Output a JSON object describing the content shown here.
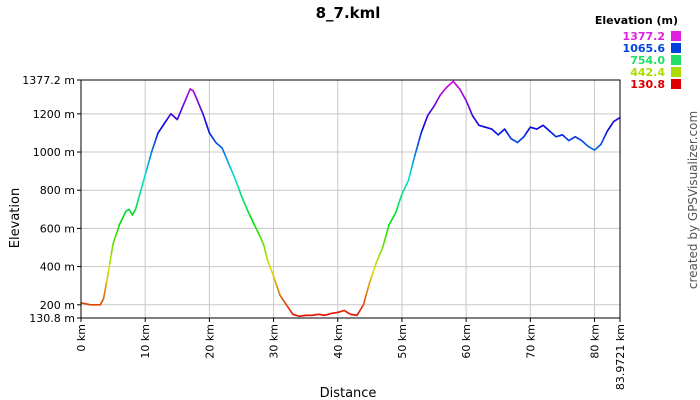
{
  "chart_data": {
    "type": "line",
    "title": "8_7.kml",
    "xlabel": "Distance",
    "ylabel": "Elevation",
    "xlim": [
      0,
      83.9721
    ],
    "ylim": [
      130.8,
      1377.2
    ],
    "x_ticks": [
      {
        "value": 0,
        "label": "0 km"
      },
      {
        "value": 10,
        "label": "10 km"
      },
      {
        "value": 20,
        "label": "20 km"
      },
      {
        "value": 30,
        "label": "30 km"
      },
      {
        "value": 40,
        "label": "40 km"
      },
      {
        "value": 50,
        "label": "50 km"
      },
      {
        "value": 60,
        "label": "60 km"
      },
      {
        "value": 70,
        "label": "70 km"
      },
      {
        "value": 80,
        "label": "80 km"
      },
      {
        "value": 83.9721,
        "label": "83.9721 km"
      }
    ],
    "y_ticks": [
      {
        "value": 130.8,
        "label": "130.8 m"
      },
      {
        "value": 200,
        "label": "200 m"
      },
      {
        "value": 400,
        "label": "400 m"
      },
      {
        "value": 600,
        "label": "600 m"
      },
      {
        "value": 800,
        "label": "800 m"
      },
      {
        "value": 1000,
        "label": "1000 m"
      },
      {
        "value": 1200,
        "label": "1200 m"
      },
      {
        "value": 1377.2,
        "label": "1377.2 m"
      }
    ],
    "grid": true,
    "legend": {
      "title": "Elevation (m)",
      "placement": "top-right",
      "entries": [
        {
          "label": "1377.2",
          "color": "#e020e0"
        },
        {
          "label": "1065.6",
          "color": "#0044dd"
        },
        {
          "label": "754.0",
          "color": "#22dd66"
        },
        {
          "label": "442.4",
          "color": "#aadd00"
        },
        {
          "label": "130.8",
          "color": "#dd0000"
        }
      ]
    },
    "series": [
      {
        "x": [
          0,
          1.5,
          3,
          3.5,
          4,
          5,
          6,
          7,
          7.5,
          8,
          8.5,
          9,
          10,
          11,
          12,
          13,
          14,
          15,
          16,
          17,
          17.5,
          18,
          19,
          20,
          21,
          22,
          23,
          24,
          25,
          26,
          27,
          28,
          28.5,
          29,
          30,
          31,
          32,
          33,
          34,
          35,
          36,
          37,
          38,
          39,
          40,
          41,
          42,
          43,
          44,
          45,
          46,
          47,
          48,
          49,
          50,
          51,
          52,
          53,
          54,
          55,
          56,
          57,
          58,
          59,
          60,
          61,
          62,
          63,
          64,
          65,
          66,
          67,
          68,
          69,
          70,
          71,
          72,
          73,
          74,
          75,
          76,
          77,
          78,
          79,
          80,
          81,
          82,
          83,
          83.9721
        ],
        "y": [
          210,
          200,
          200,
          230,
          320,
          520,
          620,
          690,
          700,
          670,
          700,
          760,
          880,
          1000,
          1100,
          1150,
          1200,
          1170,
          1250,
          1330,
          1320,
          1280,
          1200,
          1100,
          1050,
          1020,
          940,
          860,
          770,
          690,
          620,
          550,
          510,
          440,
          350,
          250,
          200,
          150,
          140,
          145,
          145,
          150,
          145,
          155,
          160,
          170,
          150,
          145,
          200,
          320,
          420,
          500,
          620,
          680,
          780,
          850,
          980,
          1100,
          1190,
          1240,
          1300,
          1340,
          1370,
          1330,
          1270,
          1190,
          1140,
          1130,
          1120,
          1090,
          1120,
          1070,
          1050,
          1080,
          1130,
          1120,
          1140,
          1110,
          1080,
          1090,
          1060,
          1080,
          1060,
          1030,
          1010,
          1040,
          1110,
          1160,
          1180
        ]
      }
    ]
  },
  "credit": "created by GPSVisualizer.com"
}
